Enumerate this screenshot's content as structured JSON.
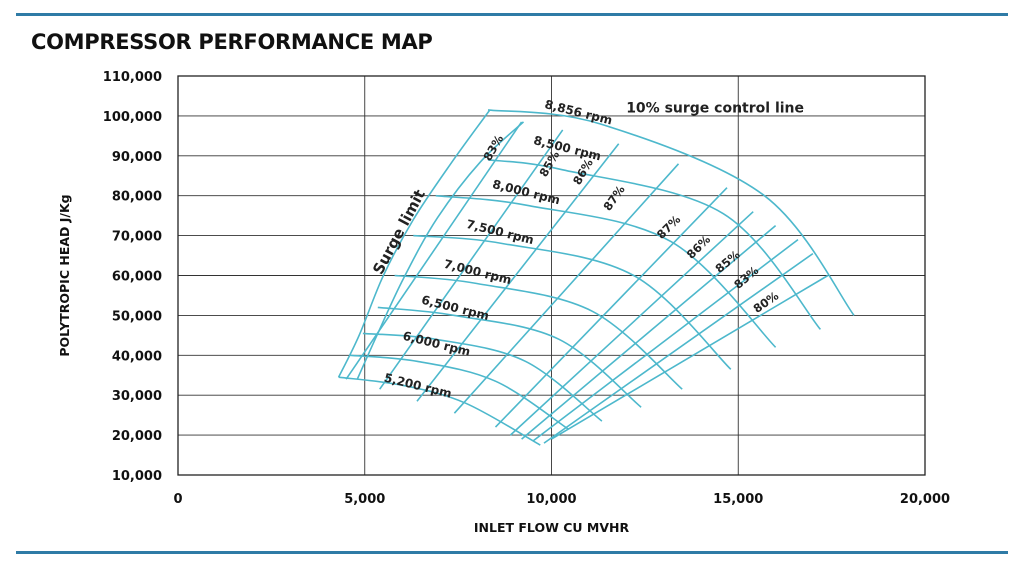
{
  "page": {
    "title": "COMPRESSOR PERFORMANCE MAP",
    "accent_color": "#2f7ba6",
    "curve_color": "#4db8cc"
  },
  "chart_data": {
    "type": "line",
    "title": "COMPRESSOR PERFORMANCE MAP",
    "xlabel": "INLET FLOW CU MVHR",
    "ylabel": "POLYTROPIC HEAD J/Kg",
    "xlim": [
      0,
      20000
    ],
    "ylim": [
      10000,
      110000
    ],
    "x_ticks": [
      "0",
      "5,000",
      "10,000",
      "15,000",
      "20,000"
    ],
    "x_tick_values": [
      0,
      5000,
      10000,
      15000,
      20000
    ],
    "y_ticks": [
      "10,000",
      "20,000",
      "30,000",
      "40,000",
      "50,000",
      "60,000",
      "70,000",
      "80,000",
      "90,000",
      "100,000",
      "110,000"
    ],
    "y_tick_values": [
      10000,
      20000,
      30000,
      40000,
      50000,
      60000,
      70000,
      80000,
      90000,
      100000,
      110000
    ],
    "grid": true,
    "speed_lines": [
      {
        "name": "5,200 rpm",
        "x": [
          4300,
          6000,
          7700,
          9700
        ],
        "y": [
          34500,
          32500,
          28000,
          17500
        ]
      },
      {
        "name": "6,000 rpm",
        "x": [
          4600,
          6400,
          8500,
          10450
        ],
        "y": [
          40000,
          38500,
          33500,
          21500
        ]
      },
      {
        "name": "6,500 rpm",
        "x": [
          4950,
          6900,
          9300,
          11350
        ],
        "y": [
          45500,
          44000,
          38500,
          23500
        ]
      },
      {
        "name": "7,000 rpm",
        "x": [
          5350,
          7400,
          10200,
          12400
        ],
        "y": [
          52000,
          50000,
          44000,
          27000
        ]
      },
      {
        "name": "7,500 rpm",
        "x": [
          5800,
          8000,
          11100,
          13500
        ],
        "y": [
          60000,
          58000,
          51000,
          31500
        ]
      },
      {
        "name": "8,000 rpm",
        "x": [
          6300,
          8700,
          12200,
          14800
        ],
        "y": [
          70000,
          68000,
          60000,
          36500
        ]
      },
      {
        "name": "8,500 rpm",
        "x": [
          6900,
          9400,
          13200,
          16000
        ],
        "y": [
          80000,
          77500,
          68500,
          42000
        ]
      },
      {
        "name": "8,856 rpm",
        "x": [
          8300,
          10300,
          14600,
          17200
        ],
        "y": [
          89000,
          86500,
          75500,
          46500
        ]
      },
      {
        "name": "",
        "x": [
          8300,
          11300,
          15700,
          18100
        ],
        "y": [
          101500,
          98000,
          80000,
          50000
        ]
      }
    ],
    "efficiency_lines": [
      {
        "name": "83%",
        "x": [
          4500,
          9200
        ],
        "y": [
          34000,
          98500
        ]
      },
      {
        "name": "85%",
        "x": [
          5400,
          10300
        ],
        "y": [
          31500,
          96500
        ]
      },
      {
        "name": "86%",
        "x": [
          6400,
          11800
        ],
        "y": [
          28500,
          93000
        ]
      },
      {
        "name": "87%",
        "x": [
          7400,
          13400
        ],
        "y": [
          25500,
          88000
        ]
      },
      {
        "name": "",
        "x": [
          8500,
          14700
        ],
        "y": [
          22000,
          82000
        ]
      },
      {
        "name": "87%",
        "x": [
          8900,
          15400
        ],
        "y": [
          20000,
          76000
        ]
      },
      {
        "name": "86%",
        "x": [
          9200,
          16000
        ],
        "y": [
          19000,
          72500
        ]
      },
      {
        "name": "85%",
        "x": [
          9500,
          16600
        ],
        "y": [
          18500,
          69000
        ]
      },
      {
        "name": "83%",
        "x": [
          9800,
          17000
        ],
        "y": [
          18000,
          65500
        ]
      },
      {
        "name": "80%",
        "x": [
          10000,
          17400
        ],
        "y": [
          19000,
          60000
        ]
      }
    ],
    "boundaries": [
      {
        "name": "Surge limit",
        "x": [
          4300,
          4850,
          5500,
          6300,
          7300,
          8350
        ],
        "y": [
          34500,
          45000,
          60000,
          74000,
          88000,
          101500
        ]
      },
      {
        "name": "10% surge control line",
        "x": [
          4800,
          5350,
          6050,
          6950,
          8100,
          9250
        ],
        "y": [
          34000,
          45500,
          59500,
          74500,
          88500,
          98500
        ]
      }
    ],
    "annotations": [
      {
        "text": "8,856 rpm",
        "x": 9800,
        "y": 102000,
        "angle": 14
      },
      {
        "text": "8,500 rpm",
        "x": 9500,
        "y": 93000,
        "angle": 14
      },
      {
        "text": "8,000 rpm",
        "x": 8400,
        "y": 82000,
        "angle": 14
      },
      {
        "text": "7,500 rpm",
        "x": 7700,
        "y": 72000,
        "angle": 14
      },
      {
        "text": "7,000 rpm",
        "x": 7100,
        "y": 62000,
        "angle": 14
      },
      {
        "text": "6,500 rpm",
        "x": 6500,
        "y": 53000,
        "angle": 14
      },
      {
        "text": "6,000 rpm",
        "x": 6000,
        "y": 44000,
        "angle": 14
      },
      {
        "text": "5,200 rpm",
        "x": 5500,
        "y": 33500,
        "angle": 14
      },
      {
        "text": "10% surge control line",
        "x": 12000,
        "y": 100800,
        "angle": 0
      },
      {
        "text": "Surge limit",
        "x": 5450,
        "y": 60000,
        "angle": -62
      },
      {
        "text": "83%",
        "x": 8350,
        "y": 88500,
        "angle": -60
      },
      {
        "text": "85%",
        "x": 9850,
        "y": 84500,
        "angle": -60
      },
      {
        "text": "86%",
        "x": 10750,
        "y": 82500,
        "angle": -60
      },
      {
        "text": "87%",
        "x": 11550,
        "y": 76000,
        "angle": -55
      },
      {
        "text": "87%",
        "x": 12950,
        "y": 69000,
        "angle": -45
      },
      {
        "text": "86%",
        "x": 13750,
        "y": 64000,
        "angle": -45
      },
      {
        "text": "85%",
        "x": 14500,
        "y": 60500,
        "angle": -40
      },
      {
        "text": "83%",
        "x": 15000,
        "y": 56500,
        "angle": -40
      },
      {
        "text": "80%",
        "x": 15500,
        "y": 50500,
        "angle": -35
      }
    ]
  }
}
